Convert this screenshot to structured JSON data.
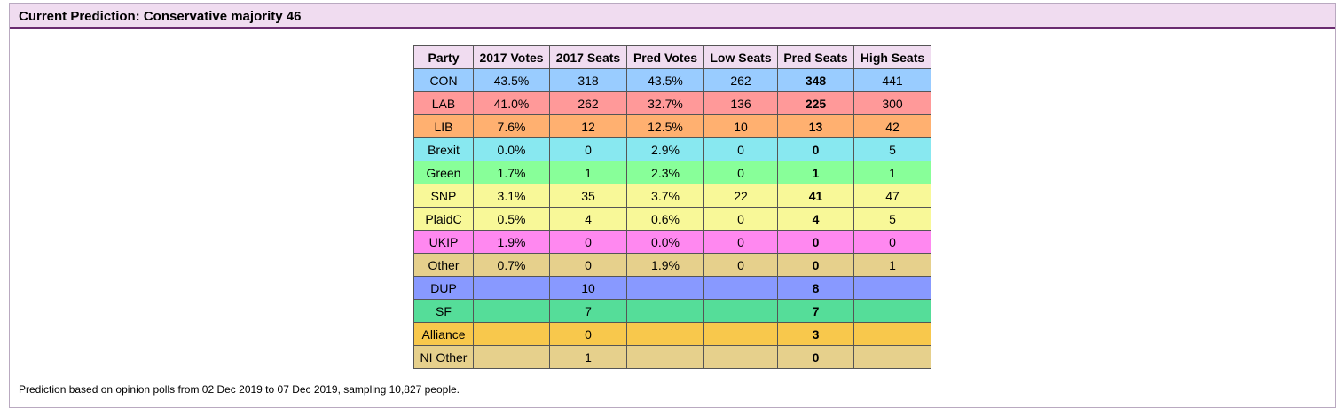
{
  "header": {
    "title": "Current Prediction: Conservative majority 46"
  },
  "table": {
    "columns": [
      "Party",
      "2017 Votes",
      "2017 Seats",
      "Pred Votes",
      "Low Seats",
      "Pred Seats",
      "High Seats"
    ],
    "rows": [
      {
        "color": "#99ccff",
        "cells": [
          "CON",
          "43.5%",
          "318",
          "43.5%",
          "262",
          "348",
          "441"
        ]
      },
      {
        "color": "#ff9999",
        "cells": [
          "LAB",
          "41.0%",
          "262",
          "32.7%",
          "136",
          "225",
          "300"
        ]
      },
      {
        "color": "#ffb070",
        "cells": [
          "LIB",
          "7.6%",
          "12",
          "12.5%",
          "10",
          "13",
          "42"
        ]
      },
      {
        "color": "#88e8f0",
        "cells": [
          "Brexit",
          "0.0%",
          "0",
          "2.9%",
          "0",
          "0",
          "5"
        ]
      },
      {
        "color": "#88ff99",
        "cells": [
          "Green",
          "1.7%",
          "1",
          "2.3%",
          "0",
          "1",
          "1"
        ]
      },
      {
        "color": "#f8f898",
        "cells": [
          "SNP",
          "3.1%",
          "35",
          "3.7%",
          "22",
          "41",
          "47"
        ]
      },
      {
        "color": "#f8f898",
        "cells": [
          "PlaidC",
          "0.5%",
          "4",
          "0.6%",
          "0",
          "4",
          "5"
        ]
      },
      {
        "color": "#ff88f0",
        "cells": [
          "UKIP",
          "1.9%",
          "0",
          "0.0%",
          "0",
          "0",
          "0"
        ]
      },
      {
        "color": "#e6d08c",
        "cells": [
          "Other",
          "0.7%",
          "0",
          "1.9%",
          "0",
          "0",
          "1"
        ]
      },
      {
        "color": "#8899ff",
        "cells": [
          "DUP",
          "",
          "10",
          "",
          "",
          "8",
          ""
        ]
      },
      {
        "color": "#55dd99",
        "cells": [
          "SF",
          "",
          "7",
          "",
          "",
          "7",
          ""
        ]
      },
      {
        "color": "#f8c84c",
        "cells": [
          "Alliance",
          "",
          "0",
          "",
          "",
          "3",
          ""
        ]
      },
      {
        "color": "#e6d08c",
        "cells": [
          "NI Other",
          "",
          "1",
          "",
          "",
          "0",
          ""
        ]
      }
    ]
  },
  "footer": {
    "text": "Prediction based on opinion polls from 02 Dec 2019 to 07 Dec 2019, sampling 10,827 people."
  }
}
